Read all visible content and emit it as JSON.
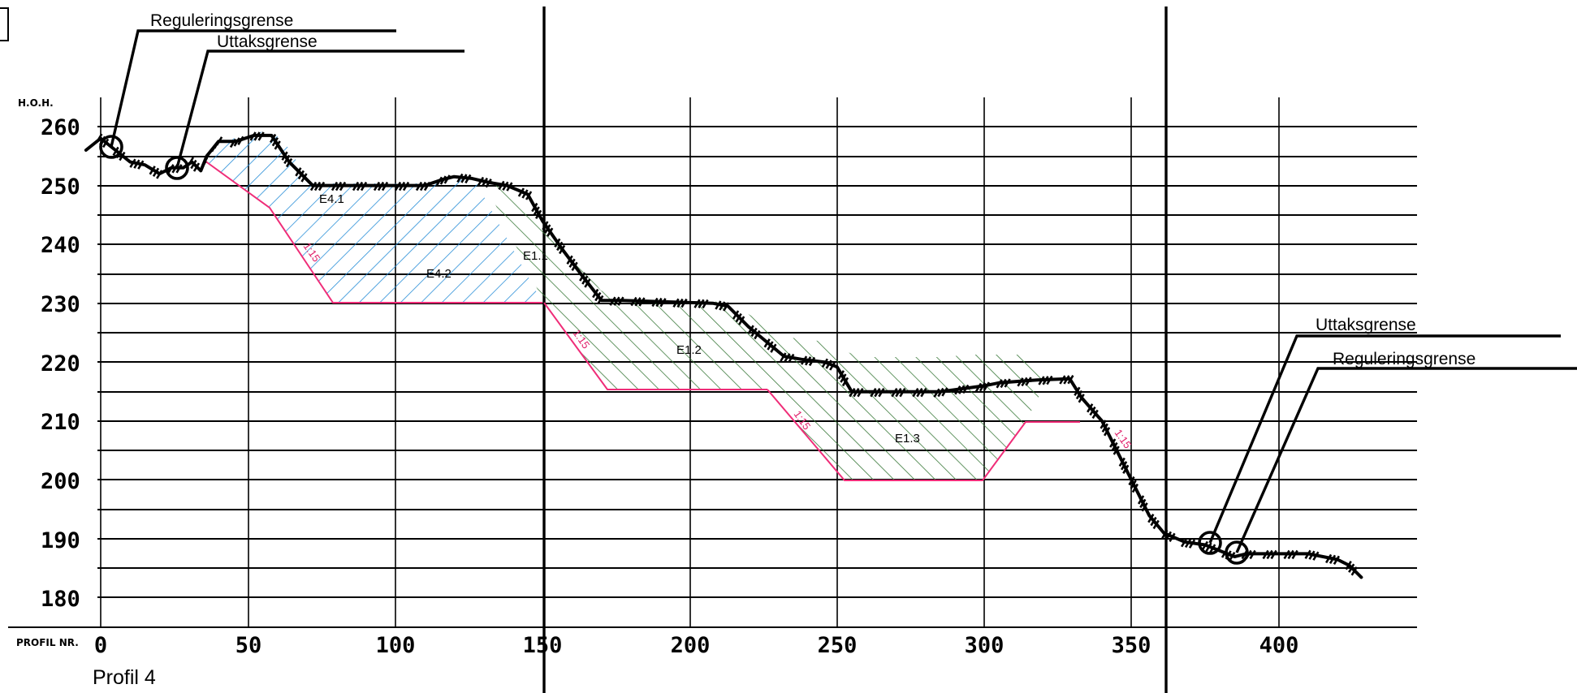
{
  "y_axis": {
    "unit_label": "H.O.H.",
    "ticks": [
      "260",
      "250",
      "240",
      "230",
      "220",
      "210",
      "200",
      "190",
      "180"
    ]
  },
  "x_axis": {
    "unit_label": "PROFIL NR.",
    "ticks": [
      "0",
      "50",
      "100",
      "150",
      "200",
      "250",
      "300",
      "350",
      "400"
    ]
  },
  "caption": "Profil 4",
  "annotations": {
    "left_regulation": "Reguleringsgrense",
    "left_extraction": "Uttaksgrense",
    "right_extraction": "Uttaksgrense",
    "right_regulation": "Reguleringsgrense"
  },
  "zones": [
    {
      "label": "E4.1",
      "color": "#2a8fd8"
    },
    {
      "label": "E4.2",
      "color": "#2a8fd8"
    },
    {
      "label": "E1.1",
      "color": "#3b7a3b"
    },
    {
      "label": "E1.2",
      "color": "#3b7a3b"
    },
    {
      "label": "E1.3",
      "color": "#3b7a3b"
    }
  ],
  "slope_labels": [
    "1:15",
    "1:15",
    "1:15",
    "1:15"
  ],
  "colors": {
    "blue_hatch": "#2a8fd8",
    "green_hatch": "#3b7a3b",
    "slope_line": "#ef2d78"
  },
  "terrain_profile": [
    [
      -5,
      256
    ],
    [
      0,
      258
    ],
    [
      5,
      256
    ],
    [
      10,
      254
    ],
    [
      15,
      253.5
    ],
    [
      20,
      252
    ],
    [
      24,
      253
    ],
    [
      28,
      253
    ],
    [
      31,
      254
    ],
    [
      34,
      252.5
    ],
    [
      36,
      255
    ],
    [
      40,
      257.5
    ],
    [
      46,
      257.5
    ],
    [
      52,
      258.5
    ],
    [
      58,
      258.5
    ],
    [
      64,
      254
    ],
    [
      72,
      250
    ],
    [
      110,
      250
    ],
    [
      116,
      251
    ],
    [
      120,
      251.5
    ],
    [
      126,
      251.2
    ],
    [
      132,
      250.5
    ],
    [
      138,
      250
    ],
    [
      145,
      248.5
    ],
    [
      150,
      244
    ],
    [
      157,
      239
    ],
    [
      163,
      235
    ],
    [
      170,
      230.5
    ],
    [
      177,
      230.5
    ],
    [
      208,
      230
    ],
    [
      213,
      229.5
    ],
    [
      220,
      226
    ],
    [
      232,
      221
    ],
    [
      238,
      220.5
    ],
    [
      246,
      220
    ],
    [
      250,
      219.2
    ],
    [
      255,
      215
    ],
    [
      285,
      215
    ],
    [
      300,
      216
    ],
    [
      305,
      216.5
    ],
    [
      318,
      217
    ],
    [
      329,
      217.2
    ],
    [
      333,
      214
    ],
    [
      340,
      210
    ],
    [
      345,
      205
    ],
    [
      350,
      200
    ],
    [
      356,
      194
    ],
    [
      361,
      191
    ],
    [
      368,
      189.5
    ],
    [
      375,
      189
    ],
    [
      385,
      187
    ],
    [
      389,
      187.5
    ],
    [
      410,
      187.5
    ],
    [
      415,
      187
    ],
    [
      420,
      186.5
    ],
    [
      424,
      185.5
    ],
    [
      428,
      183.5
    ]
  ]
}
